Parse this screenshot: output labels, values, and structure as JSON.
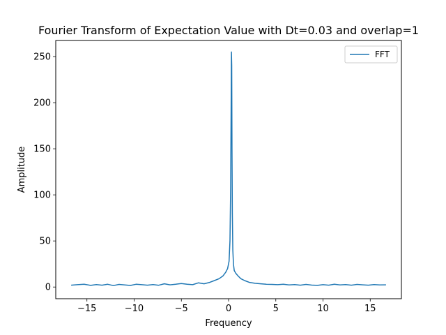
{
  "chart_data": {
    "type": "line",
    "title": "Fourier Transform of Expectation Value with Dt=0.03 and overlap=1",
    "xlabel": "Frequency",
    "ylabel": "Amplitude",
    "xlim": [
      -18.3,
      18.3
    ],
    "ylim": [
      -12.7,
      267.5
    ],
    "xticks": [
      -15,
      -10,
      -5,
      0,
      5,
      10,
      15
    ],
    "xtick_labels": [
      "−15",
      "−10",
      "−5",
      "0",
      "5",
      "10",
      "15"
    ],
    "yticks": [
      0,
      50,
      100,
      150,
      200,
      250
    ],
    "ytick_labels": [
      "0",
      "50",
      "100",
      "150",
      "200",
      "250"
    ],
    "grid": false,
    "legend": {
      "position": "top-right",
      "entries": [
        "FFT"
      ]
    },
    "series": [
      {
        "name": "FFT",
        "color": "#1f77b4",
        "x": [
          -16.67,
          -16.0,
          -15.3,
          -14.6,
          -14.0,
          -13.4,
          -12.8,
          -12.2,
          -11.6,
          -11.0,
          -10.4,
          -9.8,
          -9.2,
          -8.6,
          -8.0,
          -7.4,
          -6.8,
          -6.2,
          -5.6,
          -5.0,
          -4.4,
          -3.8,
          -3.2,
          -2.6,
          -2.0,
          -1.5,
          -1.0,
          -0.6,
          -0.3,
          -0.1,
          0.05,
          0.15,
          0.22,
          0.27,
          0.3,
          0.33,
          0.36,
          0.4,
          0.45,
          0.52,
          0.6,
          0.75,
          1.0,
          1.3,
          1.7,
          2.2,
          2.8,
          3.4,
          4.0,
          4.6,
          5.2,
          5.8,
          6.4,
          7.0,
          7.6,
          8.2,
          8.8,
          9.4,
          10.0,
          10.6,
          11.2,
          11.8,
          12.4,
          13.0,
          13.6,
          14.2,
          14.8,
          15.4,
          16.0,
          16.67
        ],
        "y": [
          2,
          2.5,
          3,
          1.8,
          2.6,
          2,
          3,
          1.5,
          2.8,
          2.2,
          1.7,
          3,
          2.5,
          2,
          2.6,
          1.9,
          3.5,
          2.4,
          3,
          3.8,
          3,
          2.5,
          4.5,
          3.5,
          5,
          7,
          9,
          12,
          16,
          20,
          28,
          50,
          110,
          200,
          255,
          240,
          150,
          80,
          40,
          25,
          18,
          15,
          12,
          9,
          7,
          5,
          4,
          3.5,
          3,
          2.8,
          2.5,
          3,
          2.2,
          2.6,
          2,
          2.8,
          2.1,
          1.8,
          2.5,
          2,
          3,
          2.2,
          2.6,
          2,
          2.8,
          2.4,
          2,
          2.6,
          2.2,
          2.4
        ]
      }
    ]
  }
}
